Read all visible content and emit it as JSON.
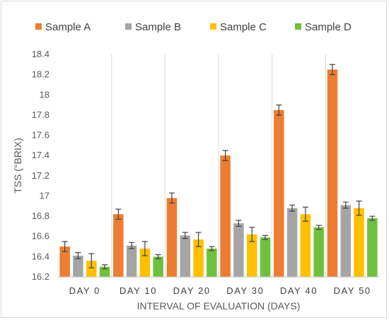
{
  "chart_data": {
    "type": "bar",
    "categories": [
      "DAY 0",
      "DAY 10",
      "DAY 20",
      "DAY 30",
      "DAY 40",
      "DAY 50"
    ],
    "series": [
      {
        "name": "Sample A",
        "color": "#ed7d31",
        "values": [
          16.5,
          16.82,
          16.98,
          17.4,
          17.85,
          18.25
        ],
        "errors": [
          0.05,
          0.05,
          0.05,
          0.05,
          0.05,
          0.05
        ]
      },
      {
        "name": "Sample B",
        "color": "#a5a5a5",
        "values": [
          16.41,
          16.51,
          16.61,
          16.73,
          16.88,
          16.91
        ],
        "errors": [
          0.03,
          0.03,
          0.03,
          0.03,
          0.03,
          0.03
        ]
      },
      {
        "name": "Sample C",
        "color": "#ffc000",
        "values": [
          16.36,
          16.48,
          16.57,
          16.62,
          16.82,
          16.88
        ],
        "errors": [
          0.07,
          0.07,
          0.07,
          0.07,
          0.07,
          0.07
        ]
      },
      {
        "name": "Sample D",
        "color": "#70c040",
        "values": [
          16.3,
          16.4,
          16.48,
          16.59,
          16.69,
          16.78
        ],
        "errors": [
          0.02,
          0.02,
          0.02,
          0.02,
          0.02,
          0.02
        ]
      }
    ],
    "xlabel": "INTERVAL OF EVALUATION (DAYS)",
    "ylabel": "TSS (°BRIX)",
    "ylim": [
      16.2,
      18.4
    ],
    "yticks": [
      "16.2",
      "16.4",
      "16.6",
      "16.8",
      "17",
      "17.2",
      "17.4",
      "17.6",
      "17.8",
      "18",
      "18.2",
      "18.4"
    ],
    "legend_position": "top",
    "category_separators": true
  }
}
